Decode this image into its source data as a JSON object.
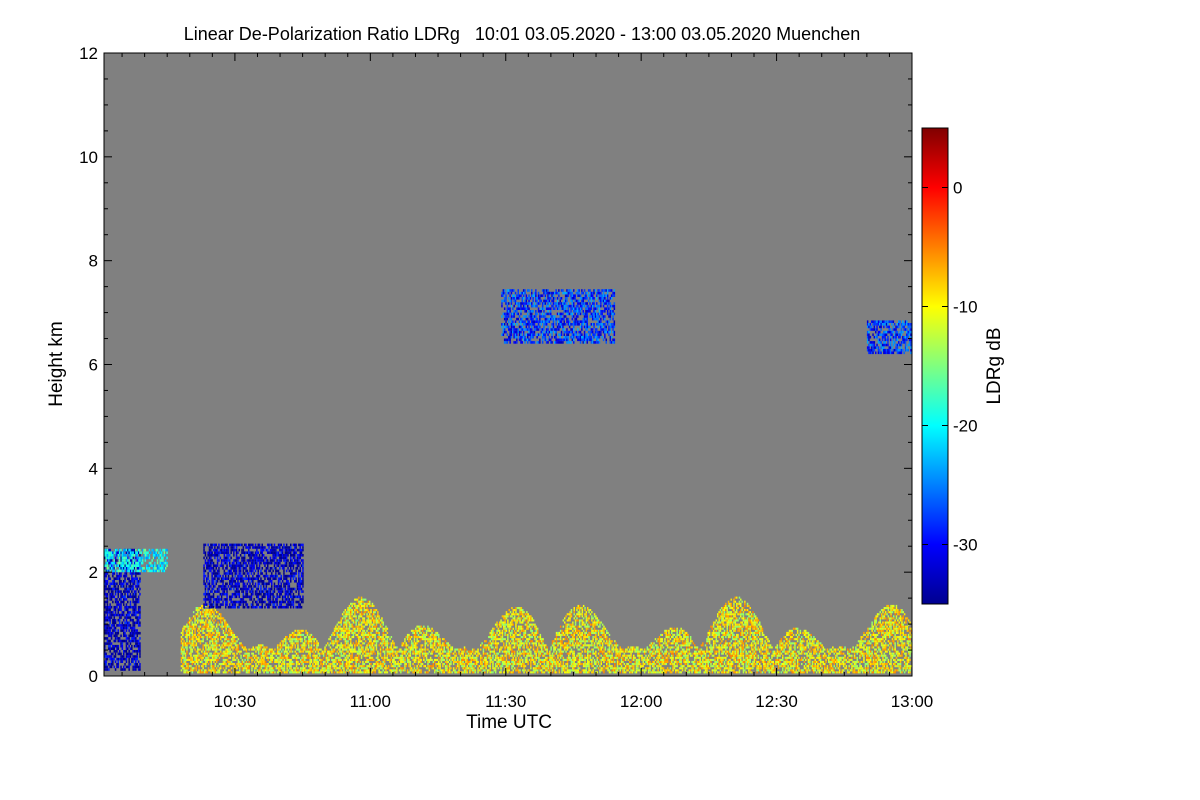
{
  "chart_data": {
    "type": "heatmap",
    "title": "Linear De-Polarization Ratio LDRg   10:01 03.05.2020 - 13:00 03.05.2020 Muenchen",
    "xlabel": "Time UTC",
    "ylabel": "Height km",
    "colorbar_label": "LDRg dB",
    "x_range_minutes": [
      601,
      780
    ],
    "y_range_km": [
      0,
      12
    ],
    "x_ticks": [
      {
        "label": "10:30",
        "value": 630
      },
      {
        "label": "11:00",
        "value": 660
      },
      {
        "label": "11:30",
        "value": 690
      },
      {
        "label": "12:00",
        "value": 720
      },
      {
        "label": "12:30",
        "value": 750
      },
      {
        "label": "13:00",
        "value": 780
      }
    ],
    "y_ticks": [
      {
        "label": "0",
        "value": 0
      },
      {
        "label": "2",
        "value": 2
      },
      {
        "label": "4",
        "value": 4
      },
      {
        "label": "6",
        "value": 6
      },
      {
        "label": "8",
        "value": 8
      },
      {
        "label": "10",
        "value": 10
      },
      {
        "label": "12",
        "value": 12
      }
    ],
    "colorbar_range_db": [
      -35,
      5
    ],
    "colorbar_ticks": [
      {
        "label": "0",
        "value": 0
      },
      {
        "label": "-10",
        "value": -10
      },
      {
        "label": "-20",
        "value": -20
      },
      {
        "label": "-30",
        "value": -30
      }
    ],
    "background_color": "#808080",
    "features": [
      {
        "name": "boundary-layer-aerosol",
        "t_start": 618,
        "t_end": 780,
        "h_low": 0.05,
        "h_high": 1.5,
        "ldr_db": -10
      },
      {
        "name": "low-ldr-column",
        "t_start": 601,
        "t_end": 609,
        "h_low": 0.1,
        "h_high": 2.4,
        "ldr_db": -33
      },
      {
        "name": "layer-2km-left",
        "t_start": 601,
        "t_end": 615,
        "h_low": 2.0,
        "h_high": 2.4,
        "ldr_db": -20
      },
      {
        "name": "layer-2km-mid",
        "t_start": 623,
        "t_end": 645,
        "h_low": 1.3,
        "h_high": 2.5,
        "ldr_db": -33
      },
      {
        "name": "cirrus-6-7km",
        "t_start": 689,
        "t_end": 714,
        "h_low": 6.4,
        "h_high": 7.4,
        "ldr_db": -28
      },
      {
        "name": "cirrus-right",
        "t_start": 770,
        "t_end": 780,
        "h_low": 6.2,
        "h_high": 6.8,
        "ldr_db": -28
      }
    ]
  }
}
